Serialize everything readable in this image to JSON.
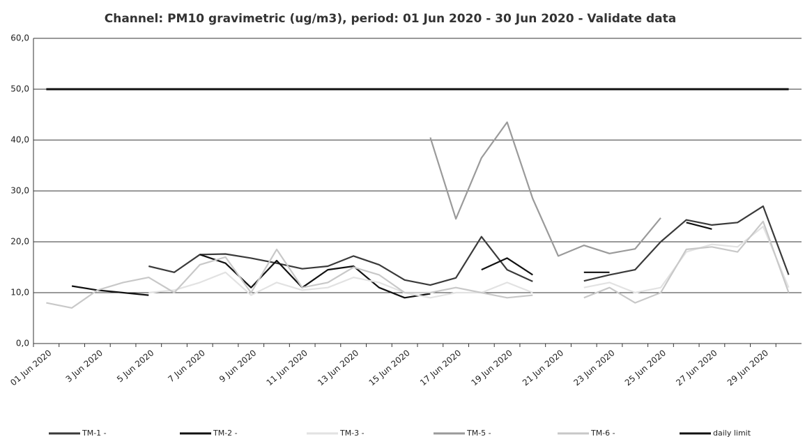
{
  "chart_data": {
    "type": "line",
    "title": "Channel: PM10 gravimetric (ug/m3), period: 01 Jun 2020 - 30 Jun 2020 - Validate data",
    "categories": [
      "01 Jun 2020",
      null,
      "3 Jun 2020",
      null,
      "5 Jun 2020",
      null,
      "7 Jun 2020",
      null,
      "9 Jun 2020",
      null,
      "11 Jun 2020",
      null,
      "13 Jun 2020",
      null,
      "15 Jun 2020",
      null,
      "17 Jun 2020",
      null,
      "19 Jun 2020",
      null,
      "21 Jun 2020",
      null,
      "23 Jun 2020",
      null,
      "25 Jun 2020",
      null,
      "27 Jun 2020",
      null,
      "29 Jun 2020",
      null
    ],
    "series": [
      {
        "name": "TM-1 -",
        "color": "#3a3a3a",
        "values": [
          null,
          null,
          null,
          null,
          15.2,
          14.0,
          17.5,
          17.6,
          16.8,
          15.8,
          14.7,
          15.2,
          17.2,
          15.5,
          12.5,
          11.5,
          12.9,
          21.0,
          14.5,
          12.2,
          null,
          12.3,
          13.5,
          14.5,
          20.0,
          24.3,
          23.3,
          23.8,
          27.0,
          13.5
        ]
      },
      {
        "name": "TM-2 -",
        "color": "#111111",
        "values": [
          null,
          11.3,
          10.5,
          10.0,
          9.5,
          null,
          17.5,
          15.8,
          11.0,
          16.3,
          11.0,
          14.5,
          15.2,
          11.0,
          9.0,
          9.8,
          null,
          14.5,
          16.8,
          13.5,
          null,
          14.0,
          14.0,
          null,
          null,
          23.8,
          22.5,
          null,
          null,
          null
        ]
      },
      {
        "name": "TM-3 -",
        "color": "#e2e2e2",
        "values": [
          null,
          null,
          null,
          null,
          10.0,
          10.5,
          12.0,
          14.0,
          9.5,
          12.0,
          10.5,
          11.0,
          13.0,
          12.0,
          10.0,
          9.0,
          10.0,
          10.0,
          12.0,
          10.0,
          null,
          11.0,
          12.0,
          10.0,
          11.0,
          18.0,
          19.5,
          19.0,
          23.0,
          11.0
        ]
      },
      {
        "name": "TM-5 -",
        "color": "#9a9a9a",
        "values": [
          null,
          null,
          null,
          null,
          null,
          null,
          null,
          null,
          null,
          null,
          null,
          null,
          null,
          null,
          null,
          40.5,
          24.5,
          36.5,
          43.5,
          28.5,
          17.2,
          19.3,
          17.7,
          18.6,
          24.7,
          null,
          null,
          null,
          null,
          null
        ]
      },
      {
        "name": "TM-6 -",
        "color": "#c8c8c8",
        "values": [
          8.0,
          7.0,
          10.5,
          12.0,
          13.0,
          10.0,
          15.5,
          17.0,
          10.0,
          18.5,
          11.0,
          12.0,
          15.0,
          13.5,
          10.0,
          10.0,
          11.0,
          10.0,
          9.0,
          9.5,
          null,
          9.0,
          11.0,
          8.0,
          10.0,
          18.5,
          19.0,
          18.0,
          24.0,
          10.0
        ]
      },
      {
        "name": "daily limit",
        "color": "#111111",
        "values": [
          50,
          50,
          50,
          50,
          50,
          50,
          50,
          50,
          50,
          50,
          50,
          50,
          50,
          50,
          50,
          50,
          50,
          50,
          50,
          50,
          50,
          50,
          50,
          50,
          50,
          50,
          50,
          50,
          50,
          50
        ]
      }
    ],
    "ylim": [
      0,
      60
    ],
    "yticks": [
      {
        "value": 0,
        "label": "0,0"
      },
      {
        "value": 10,
        "label": "10,0"
      },
      {
        "value": 20,
        "label": "20,0"
      },
      {
        "value": 30,
        "label": "30,0"
      },
      {
        "value": 40,
        "label": "40,0"
      },
      {
        "value": 50,
        "label": "50,0"
      },
      {
        "value": 60,
        "label": "60,0"
      }
    ],
    "grid": true
  }
}
